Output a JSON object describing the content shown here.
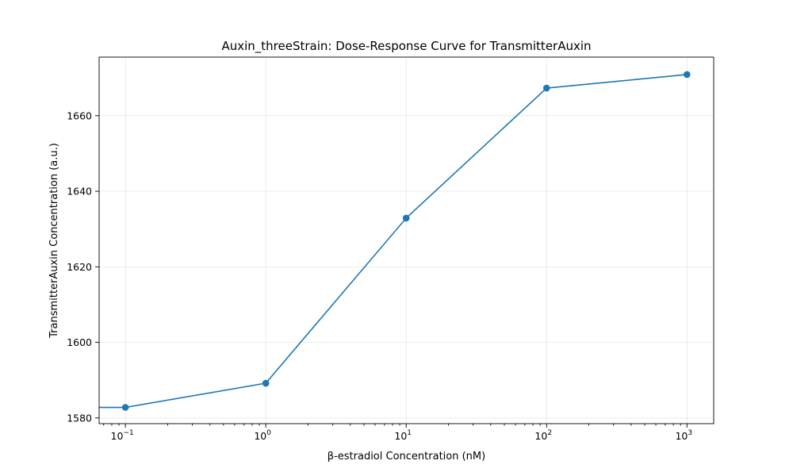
{
  "chart_data": {
    "type": "line",
    "title": "Auxin_threeStrain: Dose-Response Curve for TransmitterAuxin",
    "xlabel": "β-estradiol Concentration (nM)",
    "ylabel": "TransmitterAuxin Concentration (a.u.)",
    "xscale": "log",
    "xlim": [
      0.065,
      1550
    ],
    "ylim": [
      1578.5,
      1675.5
    ],
    "grid": true,
    "x_ticks": [
      {
        "value": 0.1,
        "base": "10",
        "exp": "−1"
      },
      {
        "value": 1,
        "base": "10",
        "exp": "0"
      },
      {
        "value": 10,
        "base": "10",
        "exp": "1"
      },
      {
        "value": 100,
        "base": "10",
        "exp": "2"
      },
      {
        "value": 1000,
        "base": "10",
        "exp": "3"
      }
    ],
    "y_ticks": [
      1580,
      1600,
      1620,
      1640,
      1660
    ],
    "color": "#1f77b4",
    "series": [
      {
        "x": [
          0.065,
          0.1,
          1,
          10,
          100,
          1000
        ],
        "y": [
          1582.8,
          1582.8,
          1589.2,
          1632.9,
          1667.3,
          1670.9
        ],
        "markers": [
          false,
          true,
          true,
          true,
          true,
          true
        ]
      }
    ]
  }
}
